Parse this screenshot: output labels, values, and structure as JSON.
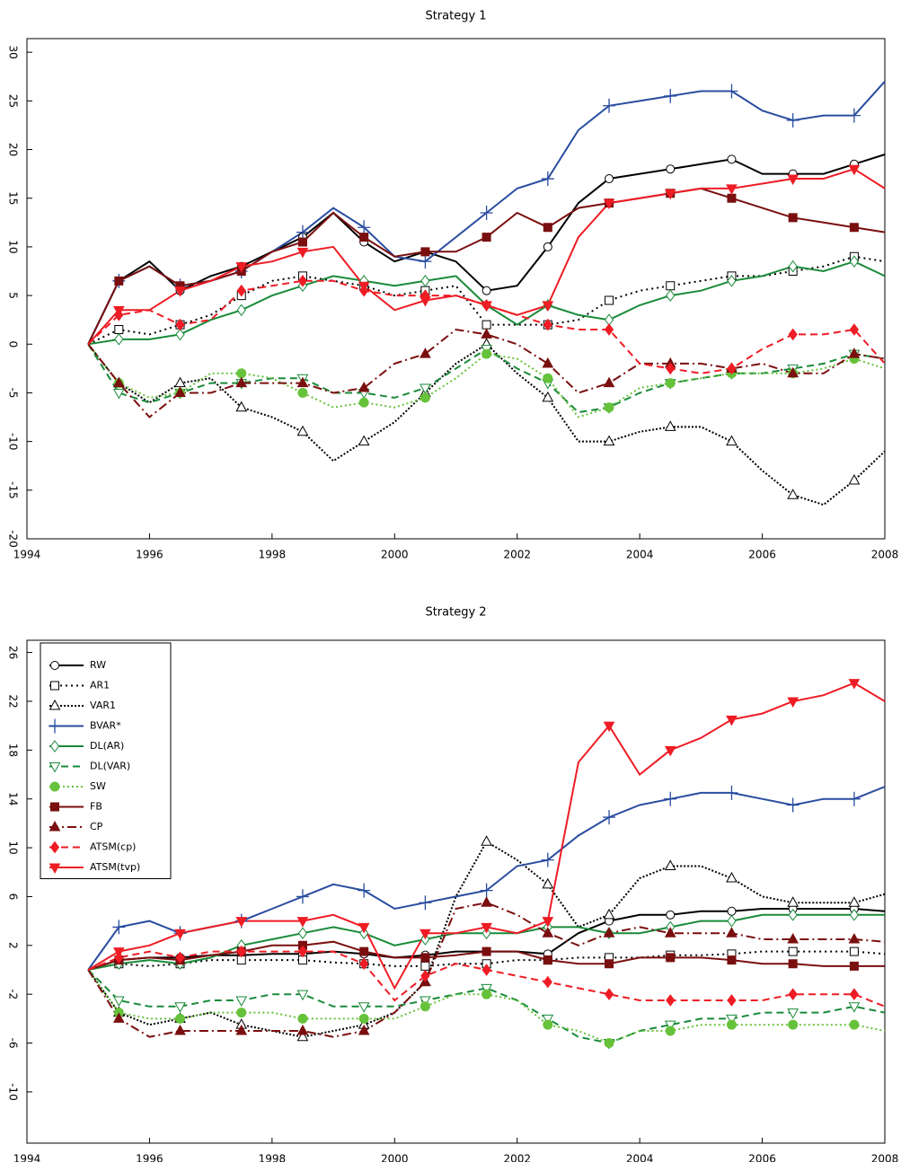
{
  "chart_data": [
    {
      "type": "line",
      "title": "Strategy 1",
      "x": [
        1995,
        1995.5,
        1996,
        1996.5,
        1997,
        1997.5,
        1998,
        1998.5,
        1999,
        1999.5,
        2000,
        2000.5,
        2001,
        2001.5,
        2002,
        2002.5,
        2003,
        2003.5,
        2004,
        2004.5,
        2005,
        2005.5,
        2006,
        2006.5,
        2007,
        2007.5,
        2008
      ],
      "xlim": [
        1994,
        2008
      ],
      "xticks": [
        1994,
        1996,
        1998,
        2000,
        2002,
        2004,
        2006,
        2008
      ],
      "ylim": [
        -20,
        31.4
      ],
      "yticks": [
        -20,
        -15,
        -10,
        -5,
        0,
        5,
        10,
        15,
        20,
        25,
        30
      ],
      "series": [
        {
          "color": "#000000",
          "values": [
            0,
            6.5,
            8.5,
            5.5,
            7,
            8,
            9.5,
            11,
            13.5,
            10.5,
            8.5,
            9.5,
            8.5,
            5.5,
            6,
            10,
            14.5,
            17,
            17.5,
            18,
            18.5,
            19,
            17.5,
            17.5,
            17.5,
            18.5,
            19.5
          ]
        },
        {
          "color": "#000000",
          "values": [
            0,
            1.5,
            1,
            2,
            3,
            5,
            6.5,
            7,
            6.5,
            6,
            5,
            5.5,
            6,
            2,
            2,
            2,
            2.5,
            4.5,
            5.5,
            6,
            6.5,
            7,
            7,
            7.5,
            8,
            9,
            8.5
          ]
        },
        {
          "color": "#000000",
          "values": [
            0,
            -4,
            -6,
            -4,
            -3.5,
            -6.5,
            -7.5,
            -9,
            -12,
            -10,
            -8,
            -5,
            -2,
            0,
            -3,
            -5.5,
            -10,
            -10,
            -9,
            -8.5,
            -8.5,
            -10,
            -13,
            -15.5,
            -16.5,
            -14,
            -11
          ]
        },
        {
          "color": "#2a4da0",
          "values": [
            0,
            6.5,
            8,
            6,
            6.5,
            7.5,
            9.5,
            11.5,
            14,
            12,
            9,
            8.5,
            11,
            13.5,
            16,
            17,
            22,
            24.5,
            25,
            25.5,
            26,
            26,
            24,
            23,
            23.5,
            23.5,
            27
          ]
        },
        {
          "color": "#1a8a3a",
          "values": [
            0,
            0.5,
            0.5,
            1,
            2.5,
            3.5,
            5,
            6,
            7,
            6.5,
            6,
            6.5,
            7,
            4,
            2,
            4,
            3,
            2.5,
            4,
            5,
            5.5,
            6.5,
            7,
            8,
            7.5,
            8.5,
            7
          ]
        },
        {
          "color": "#1a8a3a",
          "values": [
            0,
            -5,
            -6,
            -5,
            -4,
            -4,
            -3.5,
            -3.5,
            -5,
            -5,
            -5.5,
            -4.5,
            -2.5,
            -0.5,
            -2.5,
            -4,
            -7,
            -6.5,
            -5,
            -4,
            -3.5,
            -3,
            -3,
            -2.5,
            -2,
            -1,
            -1.5
          ]
        },
        {
          "color": "#66c23a",
          "values": [
            0,
            -4,
            -5.5,
            -5,
            -3,
            -3,
            -3.5,
            -5,
            -6.5,
            -6,
            -6.5,
            -5.5,
            -3.5,
            -1,
            -1.5,
            -3.5,
            -7.5,
            -6.5,
            -4.5,
            -4,
            -3.5,
            -3,
            -3,
            -3,
            -2.5,
            -1.5,
            -2.5
          ]
        },
        {
          "color": "#7a0f0f",
          "values": [
            0,
            6.5,
            8,
            6,
            6.5,
            7.5,
            9.5,
            10.5,
            13.5,
            11,
            9,
            9.5,
            9.5,
            11,
            13.5,
            12,
            14,
            14.5,
            15,
            15.5,
            16,
            15,
            14,
            13,
            12.5,
            12,
            11.5
          ]
        },
        {
          "color": "#7a0f0f",
          "values": [
            0,
            -4,
            -7.5,
            -5,
            -5,
            -4,
            -4,
            -4,
            -5,
            -4.5,
            -2,
            -1,
            1.5,
            1,
            0,
            -2,
            -5,
            -4,
            -2,
            -2,
            -2,
            -2.5,
            -2,
            -3,
            -3,
            -1,
            -1.5
          ]
        },
        {
          "color": "#ee1c24",
          "values": [
            0,
            3,
            3.5,
            2,
            2.5,
            5.5,
            6,
            6.5,
            6.5,
            5.5,
            5,
            5,
            5,
            4,
            3,
            2,
            1.5,
            1.5,
            -2,
            -2.5,
            -3,
            -2.5,
            -0.5,
            1,
            1,
            1.5,
            -2
          ]
        },
        {
          "color": "#ee1c24",
          "values": [
            0,
            3.5,
            3.5,
            5.5,
            6.5,
            8,
            8.5,
            9.5,
            10,
            6,
            3.5,
            4.5,
            5,
            4,
            3,
            4,
            11,
            14.5,
            15,
            15.5,
            16,
            16,
            16.5,
            17,
            17,
            18,
            16
          ]
        }
      ]
    },
    {
      "type": "line",
      "title": "Strategy 2",
      "legend": "upper left",
      "x": [
        1995,
        1995.5,
        1996,
        1996.5,
        1997,
        1997.5,
        1998,
        1998.5,
        1999,
        1999.5,
        2000,
        2000.5,
        2001,
        2001.5,
        2002,
        2002.5,
        2003,
        2003.5,
        2004,
        2004.5,
        2005,
        2005.5,
        2006,
        2006.5,
        2007,
        2007.5,
        2008
      ],
      "xlim": [
        1994,
        2008
      ],
      "xticks": [
        1994,
        1996,
        1998,
        2000,
        2002,
        2004,
        2006,
        2008
      ],
      "ylim": [
        -14.2,
        27
      ],
      "yticks": [
        -10,
        -6,
        -2,
        2,
        6,
        10,
        14,
        18,
        22,
        26
      ],
      "series": [
        {
          "name": "RW",
          "color": "#000000",
          "values": [
            0,
            0.8,
            1,
            1,
            1.2,
            1.2,
            1.3,
            1.3,
            1.5,
            1.3,
            1,
            1.2,
            1.5,
            1.5,
            1.5,
            1.3,
            3,
            4,
            4.5,
            4.5,
            4.8,
            4.8,
            5,
            5,
            5,
            5,
            4.8
          ]
        },
        {
          "name": "AR1",
          "color": "#000000",
          "values": [
            0,
            0.5,
            0.3,
            0.5,
            0.8,
            0.8,
            0.8,
            0.8,
            0.6,
            0.5,
            0.3,
            0.3,
            0.5,
            0.5,
            0.8,
            0.8,
            1,
            1,
            1,
            1.2,
            1.2,
            1.3,
            1.5,
            1.5,
            1.5,
            1.5,
            1.3
          ]
        },
        {
          "name": "VAR1",
          "color": "#000000",
          "values": [
            0,
            -3.5,
            -4.5,
            -4,
            -3.5,
            -4.5,
            -5,
            -5.5,
            -5,
            -4.5,
            -3.5,
            -1,
            6,
            10.5,
            9,
            7,
            3.5,
            4.5,
            7.5,
            8.5,
            8.5,
            7.5,
            6,
            5.5,
            5.5,
            5.5,
            6.2
          ]
        },
        {
          "name": "BVAR*",
          "color": "#2a4da0",
          "values": [
            0,
            3.5,
            4,
            3,
            3.5,
            4,
            5,
            6,
            7,
            6.5,
            5,
            5.5,
            6,
            6.5,
            8.5,
            9,
            11,
            12.5,
            13.5,
            14,
            14.5,
            14.5,
            14,
            13.5,
            14,
            14,
            15
          ]
        },
        {
          "name": "DL(AR)",
          "color": "#1a8a3a",
          "values": [
            0,
            0.5,
            0.8,
            0.5,
            1,
            2,
            2.5,
            3,
            3.5,
            3,
            2,
            2.5,
            3,
            3,
            3,
            3.5,
            3.5,
            3,
            3,
            3.5,
            4,
            4,
            4.5,
            4.5,
            4.5,
            4.5,
            4.5
          ]
        },
        {
          "name": "DL(VAR)",
          "color": "#1a8a3a",
          "values": [
            0,
            -2.5,
            -3,
            -3,
            -2.5,
            -2.5,
            -2,
            -2,
            -3,
            -3,
            -3,
            -2.5,
            -2,
            -1.5,
            -2.5,
            -4,
            -5.5,
            -6,
            -5,
            -4.5,
            -4,
            -4,
            -3.5,
            -3.5,
            -3.5,
            -3,
            -3.5
          ]
        },
        {
          "name": "SW",
          "color": "#66c23a",
          "values": [
            0,
            -3.5,
            -4,
            -4,
            -3.5,
            -3.5,
            -3.5,
            -4,
            -4,
            -4,
            -4,
            -3,
            -2,
            -2,
            -2.5,
            -4.5,
            -5,
            -6,
            -5,
            -5,
            -4.5,
            -4.5,
            -4.5,
            -4.5,
            -4.5,
            -4.5,
            -5
          ]
        },
        {
          "name": "FB",
          "color": "#7a0f0f",
          "values": [
            0,
            0.8,
            1,
            0.8,
            1.2,
            1.5,
            2,
            2,
            2.3,
            1.5,
            1,
            1,
            1.2,
            1.5,
            1.5,
            0.8,
            0.5,
            0.5,
            1,
            1,
            1,
            0.8,
            0.5,
            0.5,
            0.3,
            0.3,
            0.3
          ]
        },
        {
          "name": "CP",
          "color": "#7a0f0f",
          "values": [
            0,
            -4,
            -5.5,
            -5,
            -5,
            -5,
            -5,
            -5,
            -5.5,
            -5,
            -3.5,
            -1,
            5,
            5.5,
            4.5,
            3,
            2,
            3,
            3.5,
            3,
            3,
            3,
            2.5,
            2.5,
            2.5,
            2.5,
            2.3
          ]
        },
        {
          "name": "ATSM(cp)",
          "color": "#ee1c24",
          "values": [
            0,
            1,
            1.5,
            1,
            1.5,
            1.5,
            1.5,
            1.5,
            1.5,
            0.5,
            -2.5,
            -0.5,
            0.5,
            0,
            -0.5,
            -1,
            -1.5,
            -2,
            -2.5,
            -2.5,
            -2.5,
            -2.5,
            -2.5,
            -2,
            -2,
            -2,
            -3
          ]
        },
        {
          "name": "ATSM(tvp)",
          "color": "#ee1c24",
          "values": [
            0,
            1.5,
            2,
            3,
            3.5,
            4,
            4,
            4,
            4.5,
            3.5,
            -1.5,
            3,
            3,
            3.5,
            3,
            4,
            17,
            20,
            16,
            18,
            19,
            20.5,
            21,
            22,
            22.5,
            23.5,
            22
          ]
        }
      ]
    }
  ]
}
